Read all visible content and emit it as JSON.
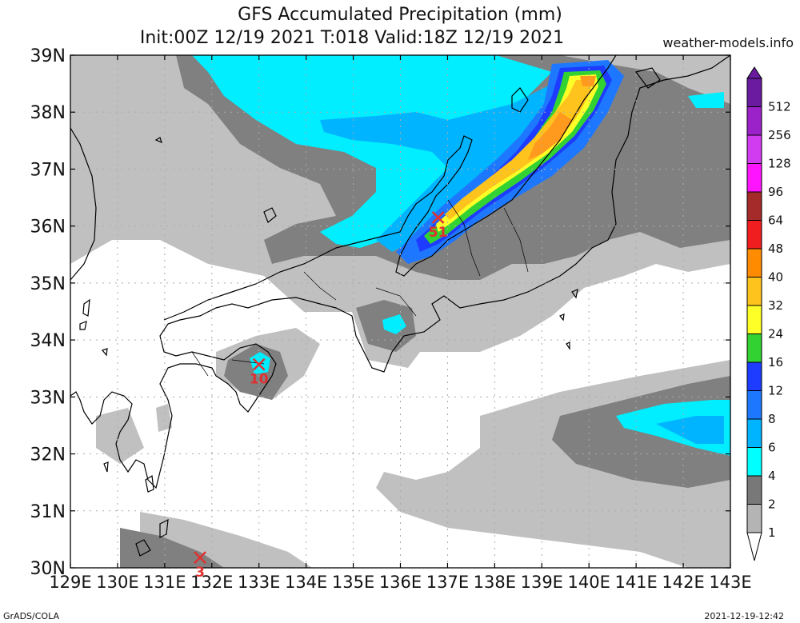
{
  "title": {
    "line1": "GFS Accumulated Precipitation (mm)",
    "line2": "Init:00Z 12/19 2021 T:018 Valid:18Z 12/19 2021"
  },
  "site": "weather-models.info",
  "footer": {
    "left": "GrADS/COLA",
    "right": "2021-12-19-12:42"
  },
  "lat_labels": [
    "39N",
    "38N",
    "37N",
    "36N",
    "35N",
    "34N",
    "33N",
    "32N",
    "31N",
    "30N"
  ],
  "lon_labels": [
    "129E",
    "130E",
    "131E",
    "132E",
    "133E",
    "134E",
    "135E",
    "136E",
    "137E",
    "138E",
    "139E",
    "140E",
    "141E",
    "142E",
    "143E"
  ],
  "legend": [
    {
      "label": "512",
      "color": "#6a1ba0"
    },
    {
      "label": "256",
      "color": "#9b22c8"
    },
    {
      "label": "128",
      "color": "#d23cf0"
    },
    {
      "label": "96",
      "color": "#ff14ff"
    },
    {
      "label": "64",
      "color": "#a52a2a"
    },
    {
      "label": "48",
      "color": "#f01e1e"
    },
    {
      "label": "40",
      "color": "#ff8c00"
    },
    {
      "label": "32",
      "color": "#ffc31e"
    },
    {
      "label": "24",
      "color": "#ffff28"
    },
    {
      "label": "16",
      "color": "#32d232"
    },
    {
      "label": "12",
      "color": "#1e3cff"
    },
    {
      "label": "8",
      "color": "#1e78ff"
    },
    {
      "label": "6",
      "color": "#00b4ff"
    },
    {
      "label": "4",
      "color": "#00ffff"
    },
    {
      "label": "2",
      "color": "#787878"
    },
    {
      "label": "1",
      "color": "#b4b4b4"
    }
  ],
  "markers": [
    {
      "value": "51",
      "lon": 136.8,
      "lat": 36.15
    },
    {
      "value": "10",
      "lon": 133.0,
      "lat": 33.57
    },
    {
      "value": "3",
      "lon": 131.75,
      "lat": 30.18
    }
  ],
  "colors": {
    "light_gray": "#c0c0c0",
    "dark_gray": "#808080",
    "cyan": "#00eeff",
    "blue": "#1e78ff",
    "marker": "#e03030"
  }
}
